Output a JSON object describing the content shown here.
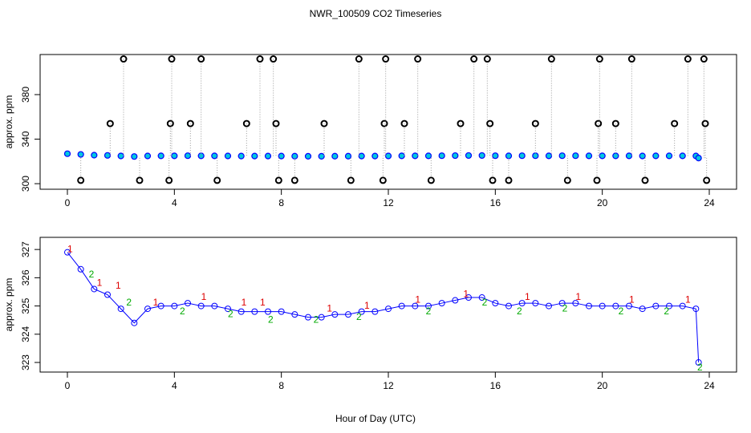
{
  "chart_data": [
    {
      "type": "scatter",
      "title": "NWR_100509  CO2 Timeseries",
      "ylabel": "approx. ppm",
      "xlim": [
        -1.02,
        25.02
      ],
      "ylim": [
        295,
        416
      ],
      "xticks": [
        0,
        4,
        8,
        12,
        16,
        20,
        24
      ],
      "yticks": [
        300,
        340,
        380
      ],
      "series": [
        {
          "color": "#0000ff",
          "x": [
            0,
            0.5,
            1,
            1.5,
            2,
            2.5,
            3,
            3.5,
            4,
            4.5,
            5,
            5.5,
            6,
            6.5,
            7,
            7.5,
            8,
            8.5,
            9,
            9.5,
            10,
            10.5,
            11,
            11.5,
            12,
            12.5,
            13,
            13.5,
            14,
            14.5,
            15,
            15.5,
            16,
            16.5,
            17,
            17.5,
            18,
            18.5,
            19,
            19.5,
            20,
            20.5,
            21,
            21.5,
            22,
            22.5,
            23,
            23.5,
            23.6
          ],
          "values": [
            326.9,
            326.3,
            325.6,
            325.4,
            324.9,
            324.4,
            324.9,
            325,
            325,
            325.1,
            325,
            325,
            324.9,
            324.8,
            324.8,
            324.8,
            324.8,
            324.7,
            324.6,
            324.6,
            324.7,
            324.7,
            324.8,
            324.8,
            324.9,
            325,
            325,
            325,
            325.1,
            325.2,
            325.3,
            325.3,
            325.1,
            325,
            325.1,
            325.1,
            325,
            325.1,
            325.1,
            325,
            325,
            325,
            325,
            324.9,
            325,
            325,
            325,
            324.9,
            323
          ]
        },
        {
          "color": "#000000",
          "x": [
            0.5,
            1.6,
            2.1,
            2.7,
            3.8,
            3.85,
            3.9,
            4.6,
            5,
            5.6,
            6.7,
            7.2,
            7.7,
            7.8,
            7.9,
            8.5,
            9.6,
            10.6,
            10.9,
            11.8,
            11.85,
            11.9,
            12.6,
            13.1,
            13.6,
            14.7,
            15.2,
            15.7,
            15.8,
            15.9,
            16.5,
            17.5,
            18.1,
            18.7,
            19.8,
            19.85,
            19.9,
            20.5,
            21.1,
            21.6,
            22.7,
            23.2,
            23.8,
            23.85,
            23.9
          ],
          "values": [
            303,
            354,
            412,
            303,
            303,
            354,
            412,
            354,
            412,
            303,
            354,
            412,
            412,
            354,
            303,
            303,
            354,
            303,
            412,
            303,
            354,
            412,
            354,
            412,
            303,
            354,
            412,
            412,
            354,
            303,
            303,
            354,
            412,
            303,
            303,
            354,
            412,
            354,
            412,
            303,
            354,
            412,
            412,
            354,
            303
          ]
        }
      ]
    },
    {
      "type": "line",
      "xlabel": "Hour of Day (UTC)",
      "ylabel": "approx. ppm",
      "xlim": [
        -1.02,
        25.02
      ],
      "ylim": [
        322.66,
        327.43
      ],
      "xticks": [
        0,
        4,
        8,
        12,
        16,
        20,
        24
      ],
      "yticks": [
        323,
        324,
        325,
        326,
        327
      ],
      "series": [
        {
          "color": "#0000ff",
          "x": [
            0,
            0.5,
            1,
            1.5,
            2,
            2.5,
            3,
            3.5,
            4,
            4.5,
            5,
            5.5,
            6,
            6.5,
            7,
            7.5,
            8,
            8.5,
            9,
            9.5,
            10,
            10.5,
            11,
            11.5,
            12,
            12.5,
            13,
            13.5,
            14,
            14.5,
            15,
            15.5,
            16,
            16.5,
            17,
            17.5,
            18,
            18.5,
            19,
            19.5,
            20,
            20.5,
            21,
            21.5,
            22,
            22.5,
            23,
            23.5,
            23.6
          ],
          "values": [
            326.9,
            326.3,
            325.6,
            325.4,
            324.9,
            324.4,
            324.9,
            325,
            325,
            325.1,
            325,
            325,
            324.9,
            324.8,
            324.8,
            324.8,
            324.8,
            324.7,
            324.6,
            324.6,
            324.7,
            324.7,
            324.8,
            324.8,
            324.9,
            325,
            325,
            325,
            325.1,
            325.2,
            325.3,
            325.3,
            325.1,
            325,
            325.1,
            325.1,
            325,
            325.1,
            325.1,
            325,
            325,
            325,
            325,
            324.9,
            325,
            325,
            325,
            324.9,
            323
          ]
        },
        {
          "name": "1",
          "color": "#dd0000",
          "x": [
            0.1,
            1.2,
            1.9,
            3.3,
            5.1,
            6.6,
            7.3,
            9.8,
            11.2,
            13.1,
            14.9,
            17.2,
            19.1,
            21.1,
            23.2
          ],
          "values": [
            327,
            325.8,
            325.7,
            325.1,
            325.3,
            325.1,
            325.1,
            324.9,
            325,
            325.2,
            325.4,
            325.3,
            325.3,
            325.2,
            325.2
          ]
        },
        {
          "name": "2",
          "color": "#00aa00",
          "x": [
            0.9,
            2.3,
            4.3,
            6.1,
            7.6,
            9.3,
            10.9,
            13.5,
            15.6,
            16.9,
            18.6,
            20.7,
            22.4,
            23.65
          ],
          "values": [
            326.1,
            325.1,
            324.8,
            324.7,
            324.5,
            324.5,
            324.6,
            324.8,
            325.1,
            324.8,
            324.9,
            324.8,
            324.8,
            322.8
          ]
        }
      ]
    }
  ]
}
